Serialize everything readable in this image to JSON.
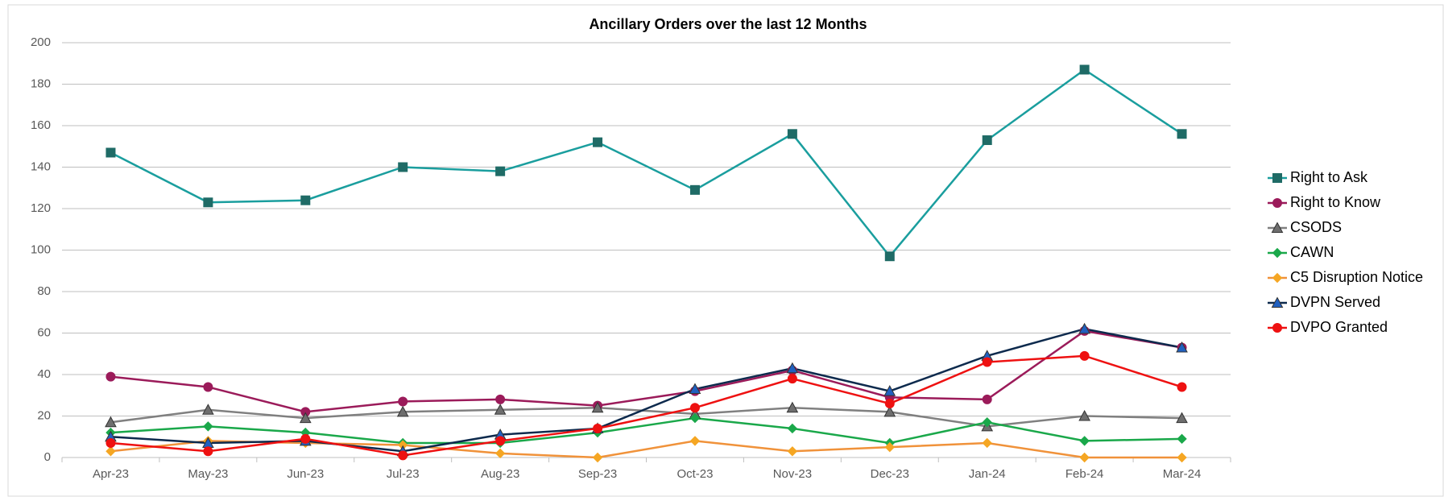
{
  "chart_data": {
    "type": "line",
    "title": "Ancillary Orders over the last 12 Months",
    "categories": [
      "Apr-23",
      "May-23",
      "Jun-23",
      "Jul-23",
      "Aug-23",
      "Sep-23",
      "Oct-23",
      "Nov-23",
      "Dec-23",
      "Jan-24",
      "Feb-24",
      "Mar-24"
    ],
    "series": [
      {
        "name": "Right to Ask",
        "color": "#1a9e9e",
        "marker_color": "#1f6b66",
        "marker": "square",
        "values": [
          147,
          123,
          124,
          140,
          138,
          152,
          129,
          156,
          97,
          153,
          187,
          156
        ]
      },
      {
        "name": "Right to Know",
        "color": "#9b1b5a",
        "marker_color": "#9b1b5a",
        "marker": "circle",
        "values": [
          39,
          34,
          22,
          27,
          28,
          25,
          32,
          42,
          29,
          28,
          61,
          53
        ]
      },
      {
        "name": "CSODS",
        "color": "#808080",
        "marker_color": "#6e6e6e",
        "marker": "triangle",
        "values": [
          17,
          23,
          19,
          22,
          23,
          24,
          21,
          24,
          22,
          15,
          20,
          19
        ]
      },
      {
        "name": "CAWN",
        "color": "#1aa84a",
        "marker_color": "#1aa84a",
        "marker": "diamond",
        "values": [
          12,
          15,
          12,
          7,
          7,
          12,
          19,
          14,
          7,
          17,
          8,
          9
        ]
      },
      {
        "name": "C5 Disruption Notice",
        "color": "#f0923a",
        "marker_color": "#f5a623",
        "marker": "diamond",
        "values": [
          3,
          8,
          7,
          6,
          2,
          0,
          8,
          3,
          5,
          7,
          0,
          0
        ]
      },
      {
        "name": "DVPN Served",
        "color": "#0d2a4d",
        "marker_color": "#2060c0",
        "marker": "triangle",
        "values": [
          10,
          7,
          8,
          3,
          11,
          14,
          33,
          43,
          32,
          49,
          62,
          53
        ]
      },
      {
        "name": "DVPO Granted",
        "color": "#ee1111",
        "marker_color": "#ee1111",
        "marker": "circle",
        "values": [
          7,
          3,
          9,
          1,
          8,
          14,
          24,
          38,
          26,
          46,
          49,
          34
        ]
      }
    ],
    "ylim": [
      0,
      200
    ],
    "yticks": [
      0,
      20,
      40,
      60,
      80,
      100,
      120,
      140,
      160,
      180,
      200
    ],
    "grid": true,
    "legend": "right"
  }
}
